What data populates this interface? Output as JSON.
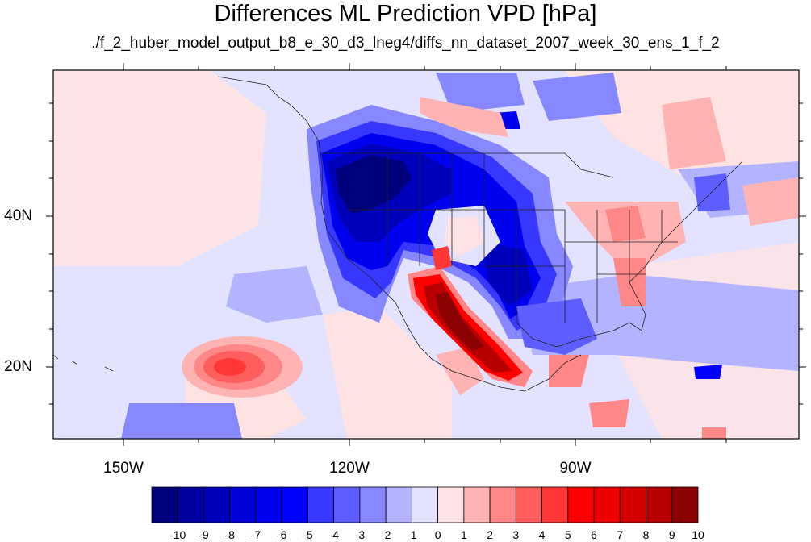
{
  "title": "Differences ML Prediction VPD [hPa]",
  "subtitle": "./f_2_huber_model_output_b8_e_30_d3_lneg4/diffs_nn_dataset_2007_week_30_ens_1_f_2",
  "map": {
    "lat_labels": [
      "40N",
      "20N"
    ],
    "lon_labels": [
      "150W",
      "120W",
      "90W"
    ]
  },
  "colorbar": {
    "labels": [
      "-10",
      "-9",
      "-8",
      "-7",
      "-6",
      "-5",
      "-4",
      "-3",
      "-2",
      "-1",
      "0",
      "1",
      "2",
      "3",
      "4",
      "5",
      "6",
      "7",
      "8",
      "9",
      "10"
    ],
    "colors": [
      "#00007d",
      "#00009e",
      "#0000bc",
      "#0000d8",
      "#0000f0",
      "#0000ff",
      "#3737ff",
      "#5e5eff",
      "#8787ff",
      "#b3b3ff",
      "#e3e3ff",
      "#ffe3e3",
      "#ffb3b3",
      "#ff8787",
      "#ff5e5e",
      "#ff3737",
      "#ff0000",
      "#ee0000",
      "#d40000",
      "#b80000",
      "#8b0000"
    ]
  }
}
